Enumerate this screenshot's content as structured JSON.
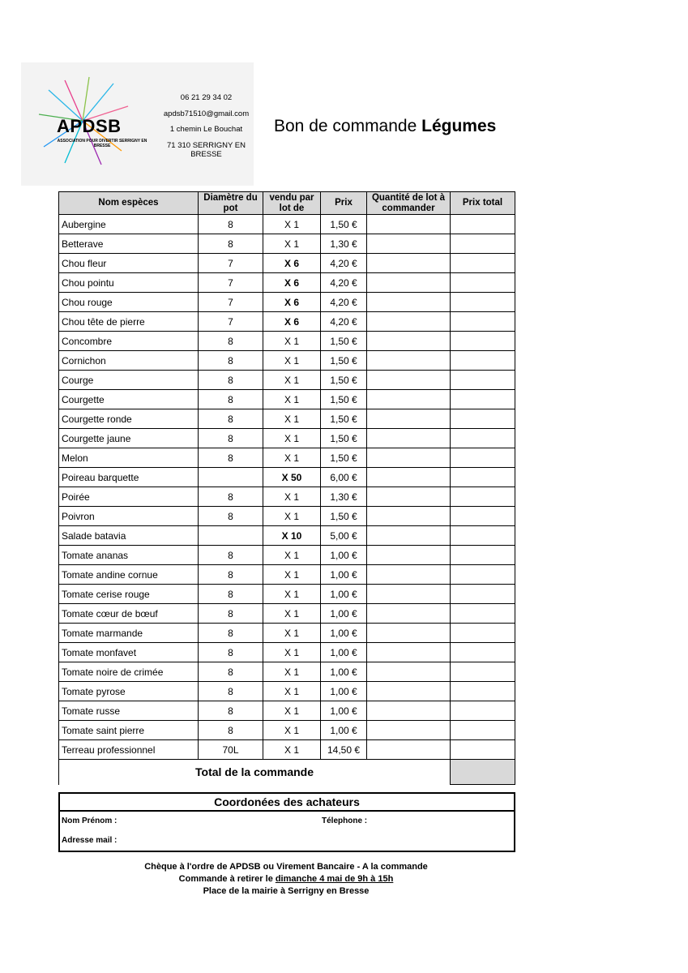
{
  "logo": {
    "name": "APDSB",
    "tagline": "ASSOCIATION POUR DIVERTIR SERRIGNY EN BRESSE",
    "contact": [
      "06 21 29 34 02",
      "apdsb71510@gmail.com",
      "1 chemin Le Bouchat",
      "71 310 SERRIGNY EN BRESSE"
    ]
  },
  "title": {
    "text": "Bon de commande",
    "emphasis": "Légumes"
  },
  "table": {
    "headers": [
      "Nom espèces",
      "Diamètre du pot",
      "vendu par lot de",
      "Prix",
      "Quantité de lot à commander",
      "Prix total"
    ],
    "rows": [
      {
        "name": "Aubergine",
        "diameter": "8",
        "lot": "X 1",
        "price": "1,50 €",
        "lot_bold": false
      },
      {
        "name": "Betterave",
        "diameter": "8",
        "lot": "X 1",
        "price": "1,30 €",
        "lot_bold": false
      },
      {
        "name": "Chou fleur",
        "diameter": "7",
        "lot": "X 6",
        "price": "4,20 €",
        "lot_bold": true
      },
      {
        "name": "Chou pointu",
        "diameter": "7",
        "lot": "X 6",
        "price": "4,20 €",
        "lot_bold": true
      },
      {
        "name": "Chou rouge",
        "diameter": "7",
        "lot": "X 6",
        "price": "4,20 €",
        "lot_bold": true
      },
      {
        "name": "Chou tête de pierre",
        "diameter": "7",
        "lot": "X 6",
        "price": "4,20 €",
        "lot_bold": true
      },
      {
        "name": "Concombre",
        "diameter": "8",
        "lot": "X 1",
        "price": "1,50 €",
        "lot_bold": false
      },
      {
        "name": "Cornichon",
        "diameter": "8",
        "lot": "X 1",
        "price": "1,50 €",
        "lot_bold": false
      },
      {
        "name": "Courge",
        "diameter": "8",
        "lot": "X 1",
        "price": "1,50 €",
        "lot_bold": false
      },
      {
        "name": "Courgette",
        "diameter": "8",
        "lot": "X 1",
        "price": "1,50 €",
        "lot_bold": false
      },
      {
        "name": "Courgette ronde",
        "diameter": "8",
        "lot": "X 1",
        "price": "1,50 €",
        "lot_bold": false
      },
      {
        "name": "Courgette jaune",
        "diameter": "8",
        "lot": "X 1",
        "price": "1,50 €",
        "lot_bold": false
      },
      {
        "name": "Melon",
        "diameter": "8",
        "lot": "X 1",
        "price": "1,50 €",
        "lot_bold": false
      },
      {
        "name": "Poireau barquette",
        "diameter": null,
        "lot": "X 50",
        "price": "6,00 €",
        "lot_bold": true
      },
      {
        "name": "Poirée",
        "diameter": "8",
        "lot": "X 1",
        "price": "1,30 €",
        "lot_bold": false
      },
      {
        "name": "Poivron",
        "diameter": "8",
        "lot": "X 1",
        "price": "1,50 €",
        "lot_bold": false
      },
      {
        "name": "Salade batavia",
        "diameter": null,
        "lot": "X 10",
        "price": "5,00 €",
        "lot_bold": true
      },
      {
        "name": "Tomate ananas",
        "diameter": "8",
        "lot": "X 1",
        "price": "1,00 €",
        "lot_bold": false
      },
      {
        "name": "Tomate andine cornue",
        "diameter": "8",
        "lot": "X 1",
        "price": "1,00 €",
        "lot_bold": false
      },
      {
        "name": "Tomate cerise rouge",
        "diameter": "8",
        "lot": "X 1",
        "price": "1,00 €",
        "lot_bold": false
      },
      {
        "name": "Tomate cœur de bœuf",
        "diameter": "8",
        "lot": "X 1",
        "price": "1,00 €",
        "lot_bold": false
      },
      {
        "name": "Tomate marmande",
        "diameter": "8",
        "lot": "X 1",
        "price": "1,00 €",
        "lot_bold": false
      },
      {
        "name": "Tomate monfavet",
        "diameter": "8",
        "lot": "X 1",
        "price": "1,00 €",
        "lot_bold": false
      },
      {
        "name": "Tomate noire de crimée",
        "diameter": "8",
        "lot": "X 1",
        "price": "1,00 €",
        "lot_bold": false
      },
      {
        "name": "Tomate pyrose",
        "diameter": "8",
        "lot": "X 1",
        "price": "1,00 €",
        "lot_bold": false
      },
      {
        "name": "Tomate russe",
        "diameter": "8",
        "lot": "X 1",
        "price": "1,00 €",
        "lot_bold": false
      },
      {
        "name": "Tomate saint pierre",
        "diameter": "8",
        "lot": "X 1",
        "price": "1,00 €",
        "lot_bold": false
      },
      {
        "name": "Terreau professionnel",
        "diameter": "70L",
        "lot": "X 1",
        "price": "14,50 €",
        "lot_bold": false
      }
    ],
    "total_label": "Total de la commande"
  },
  "buyers": {
    "title": "Coordonées des achateurs",
    "name_label": "Nom Prénom :",
    "phone_label": "Télephone :",
    "email_label": "Adresse mail :"
  },
  "footer": {
    "line1": "Chèque à l'ordre de APDSB ou Virement Bancaire - A la commande",
    "line2_before": "Commande à retirer le",
    "line2_underlined": "dimanche 4 mai de 9h à 15h",
    "line3": "Place de la mairie à Serrigny en Bresse"
  }
}
